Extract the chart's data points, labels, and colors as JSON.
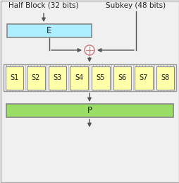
{
  "bg_color": "#f0f0f0",
  "border_color": "#aaaaaa",
  "label_halfblock": "Half Block (32 bits)",
  "label_subkey": "Subkey (48 bits)",
  "E_box_color": "#aaeeff",
  "E_box_edge": "#888888",
  "E_label": "E",
  "P_box_color": "#99dd66",
  "P_box_edge": "#888888",
  "P_label": "P",
  "S_box_color": "#ffffaa",
  "S_box_edge": "#888888",
  "S_labels": [
    "S1",
    "S2",
    "S3",
    "S4",
    "S5",
    "S6",
    "S7",
    "S8"
  ],
  "xor_color": "#cc8888",
  "arrow_color": "#555555",
  "line_color": "#aaaaaa",
  "text_color": "#222222",
  "font_size": 7.5,
  "figw": 2.55,
  "figh": 2.59,
  "dpi": 100
}
